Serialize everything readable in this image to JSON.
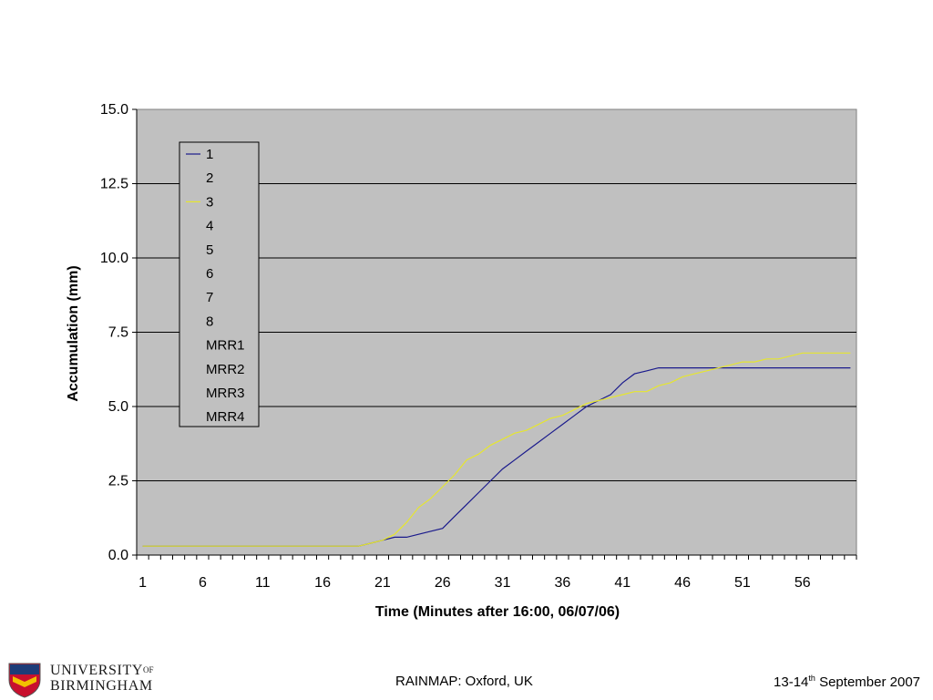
{
  "chart_data": {
    "type": "line",
    "xlabel": "Time (Minutes after 16:00, 06/07/06)",
    "ylabel": "Accumulation (mm)",
    "ylim": [
      0,
      15
    ],
    "yticks": [
      "0.0",
      "2.5",
      "5.0",
      "7.5",
      "10.0",
      "12.5",
      "15.0"
    ],
    "xlim": [
      1,
      60
    ],
    "xticks": [
      1,
      6,
      11,
      16,
      21,
      26,
      31,
      36,
      41,
      46,
      51,
      56
    ],
    "grid": "horizontal",
    "plot_background": "#c0c0c0",
    "legend": {
      "placement": "top-left",
      "entries": [
        "1",
        "2",
        "3",
        "4",
        "5",
        "6",
        "7",
        "8",
        "MRR1",
        "MRR2",
        "MRR3",
        "MRR4"
      ]
    },
    "series": [
      {
        "name": "1",
        "color": "#1a1a8c",
        "x": [
          1,
          2,
          3,
          4,
          5,
          6,
          7,
          8,
          9,
          10,
          11,
          12,
          13,
          14,
          15,
          16,
          17,
          18,
          19,
          20,
          21,
          22,
          23,
          24,
          25,
          26,
          27,
          28,
          29,
          30,
          31,
          32,
          33,
          34,
          35,
          36,
          37,
          38,
          39,
          40,
          41,
          42,
          43,
          44,
          45,
          46,
          47,
          48,
          49,
          50,
          51,
          52,
          53,
          54,
          55,
          56,
          57,
          58,
          59,
          60
        ],
        "values": [
          0.3,
          0.3,
          0.3,
          0.3,
          0.3,
          0.3,
          0.3,
          0.3,
          0.3,
          0.3,
          0.3,
          0.3,
          0.3,
          0.3,
          0.3,
          0.3,
          0.3,
          0.3,
          0.3,
          0.4,
          0.5,
          0.6,
          0.6,
          0.7,
          0.8,
          0.9,
          1.3,
          1.7,
          2.1,
          2.5,
          2.9,
          3.2,
          3.5,
          3.8,
          4.1,
          4.4,
          4.7,
          5.0,
          5.2,
          5.4,
          5.8,
          6.1,
          6.2,
          6.3,
          6.3,
          6.3,
          6.3,
          6.3,
          6.3,
          6.3,
          6.3,
          6.3,
          6.3,
          6.3,
          6.3,
          6.3,
          6.3,
          6.3,
          6.3,
          6.3
        ]
      },
      {
        "name": "3",
        "color": "#e6e62e",
        "x": [
          1,
          2,
          3,
          4,
          5,
          6,
          7,
          8,
          9,
          10,
          11,
          12,
          13,
          14,
          15,
          16,
          17,
          18,
          19,
          20,
          21,
          22,
          23,
          24,
          25,
          26,
          27,
          28,
          29,
          30,
          31,
          32,
          33,
          34,
          35,
          36,
          37,
          38,
          39,
          40,
          41,
          42,
          43,
          44,
          45,
          46,
          47,
          48,
          49,
          50,
          51,
          52,
          53,
          54,
          55,
          56,
          57,
          58,
          59,
          60
        ],
        "values": [
          0.3,
          0.3,
          0.3,
          0.3,
          0.3,
          0.3,
          0.3,
          0.3,
          0.3,
          0.3,
          0.3,
          0.3,
          0.3,
          0.3,
          0.3,
          0.3,
          0.3,
          0.3,
          0.3,
          0.4,
          0.5,
          0.7,
          1.1,
          1.6,
          1.9,
          2.3,
          2.7,
          3.2,
          3.4,
          3.7,
          3.9,
          4.1,
          4.2,
          4.4,
          4.6,
          4.7,
          4.9,
          5.1,
          5.2,
          5.3,
          5.4,
          5.5,
          5.5,
          5.7,
          5.8,
          6.0,
          6.1,
          6.2,
          6.3,
          6.4,
          6.5,
          6.5,
          6.6,
          6.6,
          6.7,
          6.8,
          6.8,
          6.8,
          6.8,
          6.8
        ]
      }
    ]
  },
  "footer": {
    "center": "RAINMAP: Oxford, UK",
    "right_prefix": "13-14",
    "right_sup": "th",
    "right_suffix": " September 2007"
  },
  "logo": {
    "line1": "UNIVERSITY",
    "line1_of": "OF",
    "line2": "BIRMINGHAM",
    "shield_colors": [
      "#c8102e",
      "#1d3c78",
      "#f2c100"
    ]
  }
}
